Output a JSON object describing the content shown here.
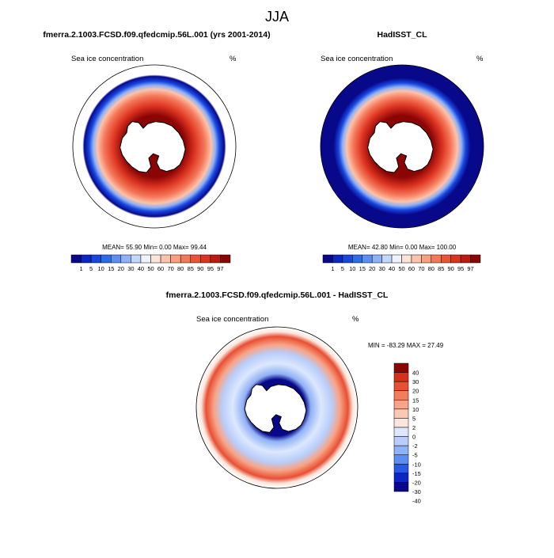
{
  "page": {
    "title": "JJA"
  },
  "colors": {
    "ice_scale_16": [
      "#08088a",
      "#0a26c4",
      "#1747e0",
      "#2f6ae8",
      "#5b8ef0",
      "#8fb1f5",
      "#c3d6fb",
      "#eef3ff",
      "#fde3d8",
      "#fcc3ab",
      "#f9a07f",
      "#f5785a",
      "#ec5236",
      "#dd3421",
      "#c01a10",
      "#8c0505"
    ],
    "diff_scale_14": [
      "#08088a",
      "#0a26c4",
      "#2a58e4",
      "#5b8ef0",
      "#8fb1f5",
      "#b8cdfa",
      "#dde8fe",
      "#fbe6dc",
      "#fbc8b2",
      "#f8a486",
      "#f37c5c",
      "#e84f33",
      "#d6301d",
      "#8c0505"
    ],
    "land": "#ffffff",
    "coast": "#000000"
  },
  "chart_data": [
    {
      "type": "heatmap",
      "panel": "model",
      "title": "fmerra.2.1003.FCSD.f09.qfedcmip.56L.001 (yrs 2001-2014)",
      "left_label": "Sea ice concentration",
      "right_label": "%",
      "stats_text": "MEAN=  55.90  Min=   0.00  Max=  99.44",
      "stats": {
        "mean": 55.9,
        "min": 0.0,
        "max": 99.44
      },
      "colorbar_ticks": [
        "1",
        "5",
        "10",
        "15",
        "20",
        "30",
        "40",
        "50",
        "60",
        "70",
        "80",
        "85",
        "90",
        "95",
        "97"
      ],
      "colorbar_levels": [
        1,
        5,
        10,
        15,
        20,
        30,
        40,
        50,
        60,
        70,
        80,
        85,
        90,
        95,
        97
      ],
      "field_levels": {
        "pack_core": 15,
        "pack_mid": 13,
        "pack_outer": 10,
        "edge": 3,
        "open_ocean": null
      }
    },
    {
      "type": "heatmap",
      "panel": "observed",
      "title": "HadISST_CL",
      "left_label": "Sea ice concentration",
      "right_label": "%",
      "stats_text": "MEAN=  42.80  Min=   0.00  Max= 100.00",
      "stats": {
        "mean": 42.8,
        "min": 0.0,
        "max": 100.0
      },
      "colorbar_ticks": [
        "1",
        "5",
        "10",
        "15",
        "20",
        "30",
        "40",
        "50",
        "60",
        "70",
        "80",
        "85",
        "90",
        "95",
        "97"
      ],
      "colorbar_levels": [
        1,
        5,
        10,
        15,
        20,
        30,
        40,
        50,
        60,
        70,
        80,
        85,
        90,
        95,
        97
      ],
      "field_levels": {
        "pack_core": 15,
        "pack_mid": 13,
        "pack_outer": 10,
        "edge": 3,
        "open_ocean": 0
      }
    },
    {
      "type": "heatmap",
      "panel": "difference",
      "title": "fmerra.2.1003.FCSD.f09.qfedcmip.56L.001 - HadISST_CL",
      "left_label": "Sea ice concentration",
      "right_label": "%",
      "stats_text": "MIN = -83.29 MAX =  27.49",
      "stats": {
        "min": -83.29,
        "max": 27.49
      },
      "colorbar_ticks": [
        "40",
        "30",
        "20",
        "15",
        "10",
        "5",
        "2",
        "0",
        "-2",
        "-5",
        "-10",
        "-15",
        "-20",
        "-30",
        "-40"
      ],
      "colorbar_levels": [
        -40,
        -30,
        -20,
        -15,
        -10,
        -5,
        -2,
        0,
        2,
        5,
        10,
        15,
        20,
        30,
        40
      ]
    }
  ]
}
